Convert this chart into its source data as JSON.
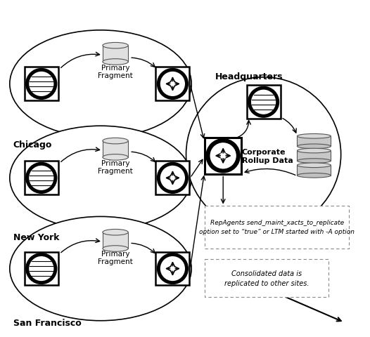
{
  "background_color": "#ffffff",
  "chicago_label": "Chicago",
  "newyork_label": "New York",
  "sanfrancisco_label": "San Francisco",
  "headquarters_label": "Headquarters",
  "corporate_label": "Corporate\nRollup Data",
  "primary_fragment_label": "Primary\nFragment",
  "note1": "RepAgents send_maint_xacts_to_replicate\noption set to “true” or LTM started with -A option",
  "note2": "Consolidated data is\nreplicated to other sites."
}
